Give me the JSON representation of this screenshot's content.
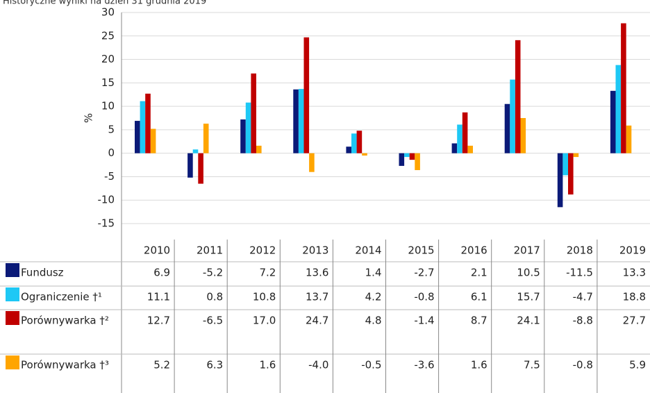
{
  "chart_data": {
    "type": "bar",
    "title": "Historyczne wyniki na dzień 31 grudnia 2019",
    "y_label": "%",
    "categories": [
      "2010",
      "2011",
      "2012",
      "2013",
      "2014",
      "2015",
      "2016",
      "2017",
      "2018",
      "2019"
    ],
    "ylim": [
      -15,
      30
    ],
    "yticks": [
      -15,
      -10,
      -5,
      0,
      5,
      10,
      15,
      20,
      25,
      30
    ],
    "grid": true,
    "series": [
      {
        "name": "Fundusz",
        "color": "#0b1a78",
        "values": [
          6.9,
          -5.2,
          7.2,
          13.6,
          1.4,
          -2.7,
          2.1,
          10.5,
          -11.5,
          13.3
        ],
        "value_labels": [
          "6.9",
          "-5.2",
          "7.2",
          "13.6",
          "1.4",
          "-2.7",
          "2.1",
          "10.5",
          "-11.5",
          "13.3"
        ]
      },
      {
        "name": "Ograniczenie †¹",
        "color": "#1ec8f5",
        "values": [
          11.1,
          0.8,
          10.8,
          13.7,
          4.2,
          -0.8,
          6.1,
          15.7,
          -4.7,
          18.8
        ],
        "value_labels": [
          "11.1",
          "0.8",
          "10.8",
          "13.7",
          "4.2",
          "-0.8",
          "6.1",
          "15.7",
          "-4.7",
          "18.8"
        ]
      },
      {
        "name": "Porównywarka †²",
        "color": "#c00000",
        "values": [
          12.7,
          -6.5,
          17.0,
          24.7,
          4.8,
          -1.4,
          8.7,
          24.1,
          -8.8,
          27.7
        ],
        "value_labels": [
          "12.7",
          "-6.5",
          "17.0",
          "24.7",
          "4.8",
          "-1.4",
          "8.7",
          "24.1",
          "-8.8",
          "27.7"
        ]
      },
      {
        "name": "Porównywarka †³",
        "color": "#ffa500",
        "values": [
          5.2,
          6.3,
          1.6,
          -4.0,
          -0.5,
          -3.6,
          1.6,
          7.5,
          -0.8,
          5.9
        ],
        "value_labels": [
          "5.2",
          "6.3",
          "1.6",
          "-4.0",
          "-0.5",
          "-3.6",
          "1.6",
          "7.5",
          "-0.8",
          "5.9"
        ]
      }
    ]
  }
}
